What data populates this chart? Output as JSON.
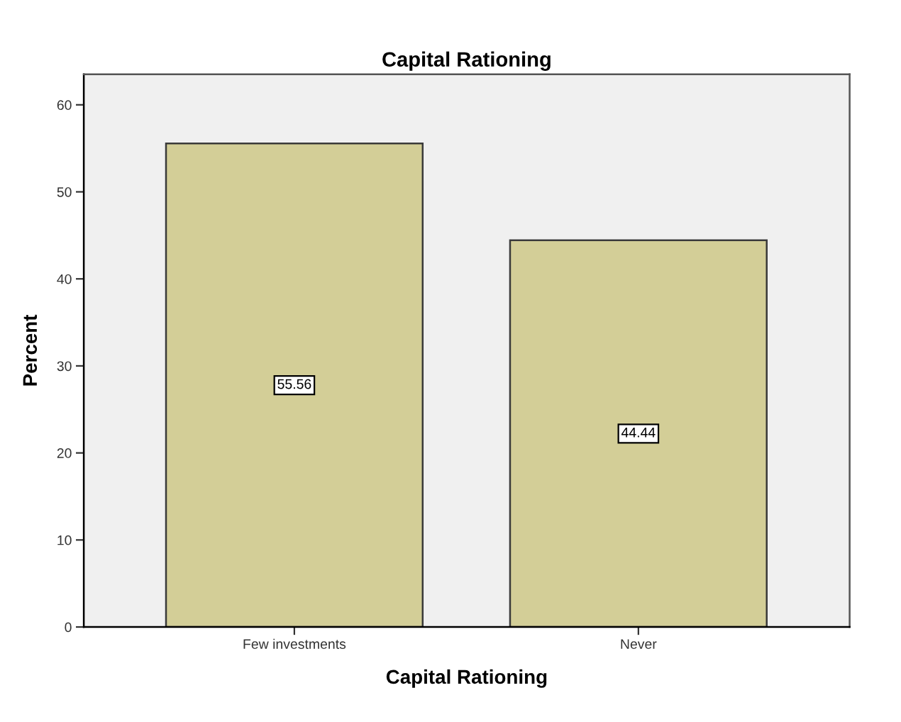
{
  "chart_data": {
    "type": "bar",
    "title": "Capital Rationing",
    "xlabel": "Capital Rationing",
    "ylabel": "Percent",
    "categories": [
      "Few investments",
      "Never"
    ],
    "values": [
      55.56,
      44.44
    ],
    "color": "#d3ce97",
    "ylim": [
      0,
      63.5
    ],
    "yticks": [
      0,
      10,
      20,
      30,
      40,
      50,
      60
    ],
    "data_labels": true
  }
}
